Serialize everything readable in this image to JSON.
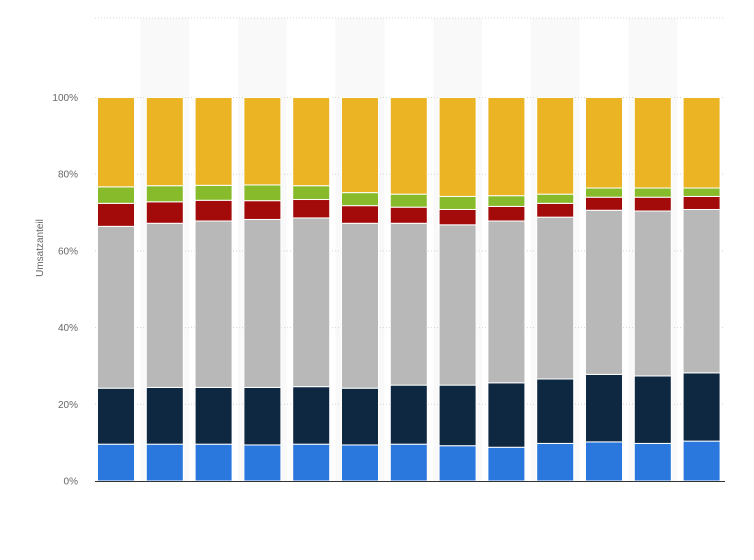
{
  "chart_data": {
    "type": "bar",
    "stacked": true,
    "categories": [
      "",
      "",
      "",
      "",
      "",
      "",
      "",
      "",
      "",
      "",
      "",
      "",
      ""
    ],
    "ylabel": "Umsatzanteil",
    "ylim": [
      0,
      100
    ],
    "y_ticks": [
      "0%",
      "20%",
      "40%",
      "60%",
      "80%",
      "100%"
    ],
    "grid": true,
    "legend": "none",
    "series": [
      {
        "color": "#2a78de",
        "values": [
          9.6,
          9.6,
          9.6,
          9.4,
          9.6,
          9.4,
          9.6,
          9.2,
          8.8,
          9.8,
          10.2,
          9.8,
          10.4
        ]
      },
      {
        "color": "#0e2841",
        "values": [
          14.6,
          14.8,
          14.8,
          15.0,
          15.0,
          14.8,
          15.4,
          15.8,
          16.8,
          16.8,
          17.6,
          17.6,
          17.8
        ]
      },
      {
        "color": "#b8b8b8",
        "values": [
          42.2,
          42.8,
          43.4,
          43.8,
          44.0,
          43.0,
          42.2,
          41.8,
          42.2,
          42.2,
          42.8,
          43.0,
          42.6
        ]
      },
      {
        "color": "#a30b0b",
        "values": [
          6.0,
          5.6,
          5.4,
          4.9,
          4.8,
          4.6,
          4.2,
          4.0,
          3.8,
          3.6,
          3.4,
          3.6,
          3.4
        ]
      },
      {
        "color": "#88bb2b",
        "values": [
          4.3,
          4.2,
          3.9,
          4.1,
          3.6,
          3.4,
          3.4,
          3.4,
          2.8,
          2.4,
          2.4,
          2.4,
          2.2
        ]
      },
      {
        "color": "#ebb424",
        "values": [
          23.3,
          23.0,
          22.9,
          22.8,
          23.0,
          24.8,
          25.2,
          25.8,
          25.6,
          25.2,
          23.6,
          23.6,
          23.6
        ]
      }
    ]
  }
}
